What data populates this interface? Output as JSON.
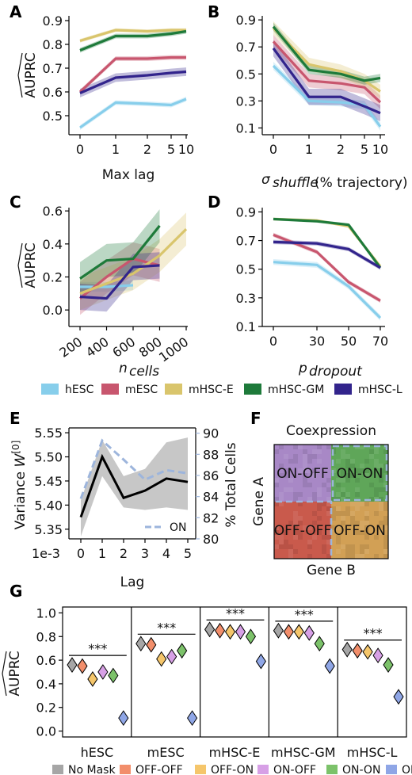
{
  "colors": {
    "hESC": "#87CEEB",
    "mESC": "#C8566E",
    "mHSC-E": "#D9C56C",
    "mHSC-GM": "#1E7A3A",
    "mHSC-L": "#32248C",
    "ON_dashed": "#9DB5DC",
    "No Mask": "#A6A6A6",
    "OFF-OFF": "#F28E6B",
    "OFF-ON": "#F5C66B",
    "ON-OFF": "#D7A0E6",
    "ON-ON": "#7CC26A",
    "ON": "#8FA6E6"
  },
  "panel_letters": [
    "A",
    "B",
    "C",
    "D",
    "E",
    "F",
    "G"
  ],
  "auprc_label": "AUPRC",
  "chart_data": [
    {
      "id": "A",
      "type": "line",
      "xlabel": "Max lag",
      "ylabel": "AUPRC",
      "x_ticks": [
        "0",
        "1",
        "2",
        "5",
        "10"
      ],
      "y_ticks": [
        0.5,
        0.6,
        0.7,
        0.8,
        0.9
      ],
      "ylim": [
        0.42,
        0.92
      ],
      "series": [
        {
          "name": "hESC",
          "values": [
            0.45,
            0.555,
            0.55,
            0.545,
            0.57
          ],
          "band": 0.01
        },
        {
          "name": "mESC",
          "values": [
            0.6,
            0.74,
            0.74,
            0.745,
            0.745
          ],
          "band": 0.01
        },
        {
          "name": "mHSC-E",
          "values": [
            0.815,
            0.86,
            0.855,
            0.86,
            0.86
          ],
          "band": 0.008
        },
        {
          "name": "mHSC-GM",
          "values": [
            0.775,
            0.835,
            0.835,
            0.845,
            0.855
          ],
          "band": 0.01
        },
        {
          "name": "mHSC-L",
          "values": [
            0.595,
            0.66,
            0.67,
            0.68,
            0.685
          ],
          "band": 0.018
        }
      ]
    },
    {
      "id": "B",
      "type": "line",
      "xlabel": "σshuffle (% trajectory)",
      "ylabel": "",
      "x_ticks": [
        "0",
        "1",
        "2",
        "5",
        "10"
      ],
      "y_ticks": [
        0.1,
        0.3,
        0.5,
        0.7,
        0.9
      ],
      "ylim": [
        0.05,
        0.93
      ],
      "series": [
        {
          "name": "hESC",
          "values": [
            0.56,
            0.3,
            0.29,
            0.27,
            0.11
          ],
          "band": 0.03
        },
        {
          "name": "mESC",
          "values": [
            0.74,
            0.45,
            0.43,
            0.4,
            0.29
          ],
          "band": 0.05
        },
        {
          "name": "mHSC-E",
          "values": [
            0.84,
            0.57,
            0.52,
            0.45,
            0.37
          ],
          "band": 0.05
        },
        {
          "name": "mHSC-GM",
          "values": [
            0.85,
            0.53,
            0.5,
            0.45,
            0.47
          ],
          "band": 0.03
        },
        {
          "name": "mHSC-L",
          "values": [
            0.69,
            0.33,
            0.33,
            0.26,
            0.21
          ],
          "band": 0.06
        }
      ]
    },
    {
      "id": "C",
      "type": "line",
      "xlabel": "ncells",
      "ylabel": "AUPRC",
      "x_ticks": [
        "200",
        "400",
        "600",
        "800",
        "1000"
      ],
      "y_ticks": [
        0.0,
        0.2,
        0.4,
        0.6
      ],
      "ylim": [
        -0.1,
        0.62
      ],
      "series": [
        {
          "name": "hESC",
          "x": [
            200,
            400,
            600
          ],
          "values": [
            0.14,
            0.14,
            0.15
          ],
          "band": 0.03
        },
        {
          "name": "mESC",
          "x": [
            200,
            400,
            600,
            800
          ],
          "values": [
            0.07,
            0.2,
            0.31,
            0.27
          ],
          "band": 0.1
        },
        {
          "name": "mHSC-E",
          "x": [
            200,
            400,
            600,
            800,
            1000
          ],
          "values": [
            0.1,
            0.16,
            0.22,
            0.33,
            0.49
          ],
          "band": 0.1
        },
        {
          "name": "mHSC-GM",
          "x": [
            200,
            400,
            600,
            800
          ],
          "values": [
            0.19,
            0.3,
            0.31,
            0.51
          ],
          "band": 0.1
        },
        {
          "name": "mHSC-L",
          "x": [
            200,
            400,
            600,
            800
          ],
          "values": [
            0.08,
            0.07,
            0.26,
            0.27
          ],
          "band": 0.08
        }
      ]
    },
    {
      "id": "D",
      "type": "line",
      "xlabel": "pdropout",
      "ylabel": "",
      "x_ticks": [
        "0",
        "30",
        "50",
        "70"
      ],
      "y_ticks": [
        0.1,
        0.3,
        0.5,
        0.7,
        0.9
      ],
      "ylim": [
        0.1,
        0.93
      ],
      "series": [
        {
          "name": "hESC",
          "values": [
            0.55,
            0.53,
            0.38,
            0.16
          ],
          "band": 0.02
        },
        {
          "name": "mESC",
          "values": [
            0.74,
            0.62,
            0.41,
            0.28
          ],
          "band": 0.015
        },
        {
          "name": "mHSC-E",
          "values": [
            0.85,
            0.84,
            0.8,
            0.52
          ],
          "band": 0.01
        },
        {
          "name": "mHSC-GM",
          "values": [
            0.85,
            0.835,
            0.81,
            0.51
          ],
          "band": 0.01
        },
        {
          "name": "mHSC-L",
          "values": [
            0.69,
            0.68,
            0.64,
            0.51
          ],
          "band": 0.015
        }
      ]
    },
    {
      "id": "legend1",
      "type": "legend",
      "entries": [
        "hESC",
        "mESC",
        "mHSC-E",
        "mHSC-GM",
        "mHSC-L"
      ]
    },
    {
      "id": "E",
      "type": "line",
      "xlabel": "Lag",
      "ylabel": "Variance W[0]",
      "y2label": "% Total Cells",
      "offset_label": "1e-3",
      "x_ticks": [
        "0",
        "1",
        "2",
        "3",
        "4",
        "5"
      ],
      "y_ticks": [
        "5.35",
        "5.40",
        "5.45",
        "5.50",
        "5.55"
      ],
      "y2_ticks": [
        "80",
        "82",
        "84",
        "86",
        "88",
        "90"
      ],
      "ylim": [
        5.33,
        5.56
      ],
      "y2lim": [
        80,
        90.5
      ],
      "series": [
        {
          "name": "variance",
          "values": [
            5.375,
            5.5,
            5.415,
            5.43,
            5.455,
            5.448
          ],
          "lo": [
            5.335,
            5.46,
            5.395,
            5.39,
            5.395,
            5.39
          ],
          "hi": [
            5.41,
            5.535,
            5.46,
            5.475,
            5.53,
            5.54
          ]
        },
        {
          "name": "ON",
          "values": [
            83.8,
            89.3,
            87.5,
            85.6,
            86.5,
            86.2
          ]
        }
      ],
      "legend": "ON"
    },
    {
      "id": "F",
      "type": "diagram",
      "title": "Coexpression",
      "ylabel": "Gene A",
      "xlabel": "Gene B",
      "quadrants": [
        "ON-OFF",
        "ON-ON",
        "OFF-OFF",
        "OFF-ON"
      ]
    },
    {
      "id": "G",
      "type": "scatter",
      "ylabel": "AUPRC",
      "y_ticks": [
        "0.0",
        "0.2",
        "0.4",
        "0.6",
        "0.8",
        "1.0"
      ],
      "ylim": [
        -0.05,
        1.05
      ],
      "groups": [
        "hESC",
        "mESC",
        "mHSC-E",
        "mHSC-GM",
        "mHSC-L"
      ],
      "significance": "***",
      "masks": [
        "No Mask",
        "OFF-OFF",
        "OFF-ON",
        "ON-OFF",
        "ON-ON",
        "ON"
      ],
      "values": [
        [
          0.56,
          0.55,
          0.44,
          0.5,
          0.47,
          0.11
        ],
        [
          0.74,
          0.73,
          0.61,
          0.63,
          0.68,
          0.11
        ],
        [
          0.86,
          0.85,
          0.84,
          0.84,
          0.8,
          0.59
        ],
        [
          0.85,
          0.84,
          0.84,
          0.83,
          0.74,
          0.55
        ],
        [
          0.69,
          0.68,
          0.67,
          0.64,
          0.56,
          0.29
        ]
      ]
    }
  ]
}
